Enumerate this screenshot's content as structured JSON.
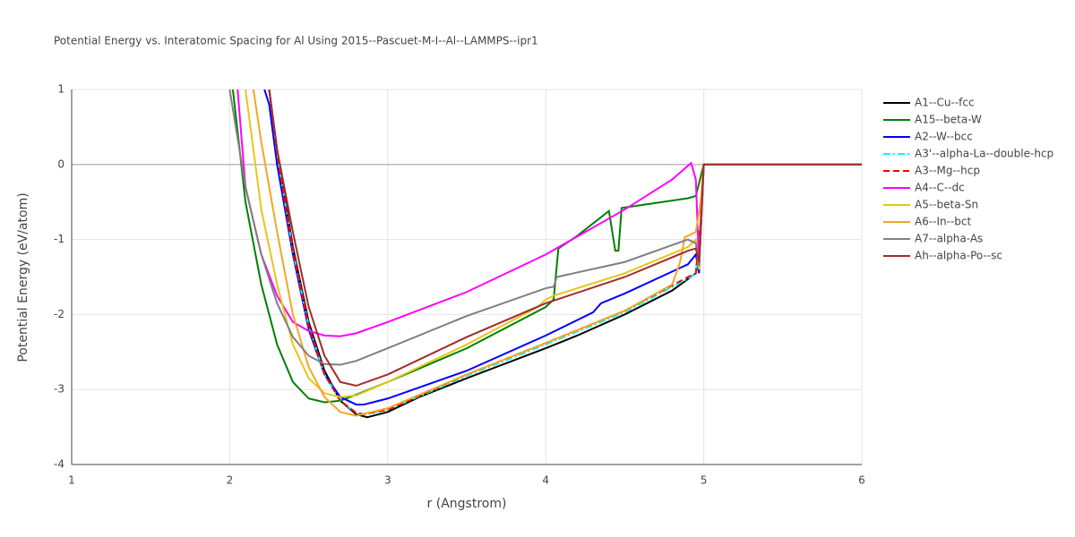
{
  "chart_data": {
    "type": "line",
    "title": "Potential Energy vs. Interatomic Spacing for Al Using 2015--Pascuet-M-I--Al--LAMMPS--ipr1",
    "x_label": "r (Angstrom)",
    "y_label": "Potential Energy (eV/atom)",
    "xlim": [
      1,
      6
    ],
    "ylim": [
      -4,
      1
    ],
    "xticks": [
      1,
      2,
      3,
      4,
      5,
      6
    ],
    "yticks": [
      -4,
      -3,
      -2,
      -1,
      0,
      1
    ],
    "grid": true,
    "series": [
      {
        "name": "A1--Cu--fcc",
        "color": "#000000",
        "dash": "solid",
        "x": [
          2.25,
          2.3,
          2.4,
          2.5,
          2.6,
          2.7,
          2.8,
          2.87,
          3.0,
          3.2,
          3.5,
          4.0,
          4.2,
          4.5,
          4.8,
          4.95,
          4.98,
          5.0,
          6.0
        ],
        "values": [
          1.0,
          0.2,
          -1.1,
          -2.1,
          -2.75,
          -3.15,
          -3.33,
          -3.37,
          -3.3,
          -3.1,
          -2.85,
          -2.45,
          -2.28,
          -2.0,
          -1.68,
          -1.45,
          -0.8,
          0,
          0
        ]
      },
      {
        "name": "A15--beta-W",
        "color": "#008000",
        "dash": "solid",
        "x": [
          2.02,
          2.1,
          2.2,
          2.3,
          2.4,
          2.5,
          2.6,
          2.7,
          2.8,
          3.0,
          3.5,
          4.0,
          4.05,
          4.08,
          4.2,
          4.4,
          4.44,
          4.46,
          4.48,
          4.9,
          4.95,
          5.0,
          6.0
        ],
        "values": [
          1.0,
          -0.5,
          -1.6,
          -2.4,
          -2.9,
          -3.12,
          -3.17,
          -3.15,
          -3.07,
          -2.9,
          -2.45,
          -1.9,
          -1.8,
          -1.12,
          -0.95,
          -0.62,
          -1.15,
          -1.15,
          -0.58,
          -0.45,
          -0.42,
          0,
          0
        ]
      },
      {
        "name": "A2--W--bcc",
        "color": "#0000ff",
        "dash": "solid",
        "x": [
          2.22,
          2.25,
          2.3,
          2.4,
          2.5,
          2.6,
          2.7,
          2.8,
          2.85,
          3.0,
          3.5,
          4.0,
          4.3,
          4.35,
          4.5,
          4.9,
          4.95,
          4.97,
          5.0,
          6.0
        ],
        "values": [
          1.0,
          0.8,
          0,
          -1.2,
          -2.2,
          -2.8,
          -3.1,
          -3.2,
          -3.2,
          -3.12,
          -2.75,
          -2.28,
          -1.97,
          -1.85,
          -1.72,
          -1.33,
          -1.2,
          -1.45,
          0,
          0
        ]
      },
      {
        "name": "A3'--alpha-La--double-hcp",
        "color": "#00ffff",
        "dash": "dashdot",
        "x": [
          2.25,
          2.3,
          2.4,
          2.5,
          2.6,
          2.7,
          2.8,
          2.85,
          3.0,
          3.5,
          4.0,
          4.5,
          4.9,
          4.95,
          4.98,
          5.0,
          6.0
        ],
        "values": [
          1.0,
          0.15,
          -1.15,
          -2.15,
          -2.8,
          -3.15,
          -3.31,
          -3.33,
          -3.27,
          -2.82,
          -2.4,
          -1.97,
          -1.52,
          -1.46,
          -0.8,
          0,
          0
        ]
      },
      {
        "name": "A3--Mg--hcp",
        "color": "#ff0000",
        "dash": "dash",
        "x": [
          2.25,
          2.3,
          2.4,
          2.5,
          2.6,
          2.7,
          2.8,
          2.85,
          3.0,
          3.5,
          4.0,
          4.5,
          4.9,
          4.95,
          4.98,
          5.0,
          6.0
        ],
        "values": [
          1.0,
          0.15,
          -1.15,
          -2.15,
          -2.8,
          -3.15,
          -3.31,
          -3.33,
          -3.27,
          -2.8,
          -2.38,
          -1.95,
          -1.5,
          -1.45,
          -0.8,
          0,
          0
        ]
      },
      {
        "name": "A4--C--dc",
        "color": "#ff00ff",
        "dash": "solid",
        "x": [
          2.05,
          2.1,
          2.2,
          2.3,
          2.4,
          2.5,
          2.6,
          2.7,
          2.8,
          3.0,
          3.5,
          4.0,
          4.5,
          4.8,
          4.92,
          4.95,
          4.97,
          5.0,
          6.0
        ],
        "values": [
          1.0,
          -0.3,
          -1.2,
          -1.75,
          -2.1,
          -2.22,
          -2.28,
          -2.29,
          -2.25,
          -2.1,
          -1.7,
          -1.2,
          -0.6,
          -0.2,
          0.02,
          -0.2,
          -1.35,
          0,
          0
        ]
      },
      {
        "name": "A5--beta-Sn",
        "color": "#e6c619",
        "dash": "solid",
        "x": [
          2.1,
          2.2,
          2.3,
          2.4,
          2.5,
          2.6,
          2.7,
          2.8,
          3.0,
          3.5,
          3.95,
          4.0,
          4.05,
          4.5,
          4.9,
          4.95,
          4.97,
          5.0,
          6.0
        ],
        "values": [
          1.0,
          -0.6,
          -1.6,
          -2.4,
          -2.85,
          -3.05,
          -3.1,
          -3.08,
          -2.9,
          -2.4,
          -1.9,
          -1.8,
          -1.75,
          -1.45,
          -1.1,
          -1.0,
          -1.4,
          0,
          0
        ]
      },
      {
        "name": "A6--In--bct",
        "color": "#f5a623",
        "dash": "solid",
        "x": [
          2.15,
          2.2,
          2.3,
          2.4,
          2.5,
          2.6,
          2.7,
          2.8,
          3.0,
          3.5,
          4.0,
          4.5,
          4.8,
          4.85,
          4.88,
          4.95,
          4.98,
          5.0,
          6.0
        ],
        "values": [
          1.0,
          0.3,
          -0.9,
          -2.0,
          -2.7,
          -3.1,
          -3.3,
          -3.35,
          -3.25,
          -2.8,
          -2.38,
          -1.95,
          -1.6,
          -1.3,
          -0.97,
          -0.9,
          -0.5,
          0,
          0
        ]
      },
      {
        "name": "A7--alpha-As",
        "color": "#808080",
        "dash": "solid",
        "x": [
          2.0,
          2.1,
          2.2,
          2.3,
          2.4,
          2.5,
          2.6,
          2.7,
          2.8,
          3.0,
          3.5,
          4.0,
          4.05,
          4.07,
          4.5,
          4.9,
          4.95,
          4.97,
          5.0,
          6.0
        ],
        "values": [
          1.0,
          -0.3,
          -1.2,
          -1.85,
          -2.3,
          -2.55,
          -2.66,
          -2.67,
          -2.62,
          -2.45,
          -2.02,
          -1.65,
          -1.63,
          -1.5,
          -1.3,
          -1.0,
          -1.05,
          -1.35,
          0,
          0
        ]
      },
      {
        "name": "Ah--alpha-Po--sc",
        "color": "#a52a2a",
        "dash": "solid",
        "x": [
          2.25,
          2.3,
          2.4,
          2.5,
          2.6,
          2.7,
          2.8,
          3.0,
          3.5,
          4.0,
          4.5,
          4.9,
          4.95,
          4.97,
          5.0,
          6.0
        ],
        "values": [
          1.0,
          0.2,
          -0.9,
          -1.9,
          -2.55,
          -2.9,
          -2.95,
          -2.8,
          -2.3,
          -1.85,
          -1.5,
          -1.15,
          -1.12,
          -1.3,
          0,
          0
        ]
      }
    ]
  }
}
